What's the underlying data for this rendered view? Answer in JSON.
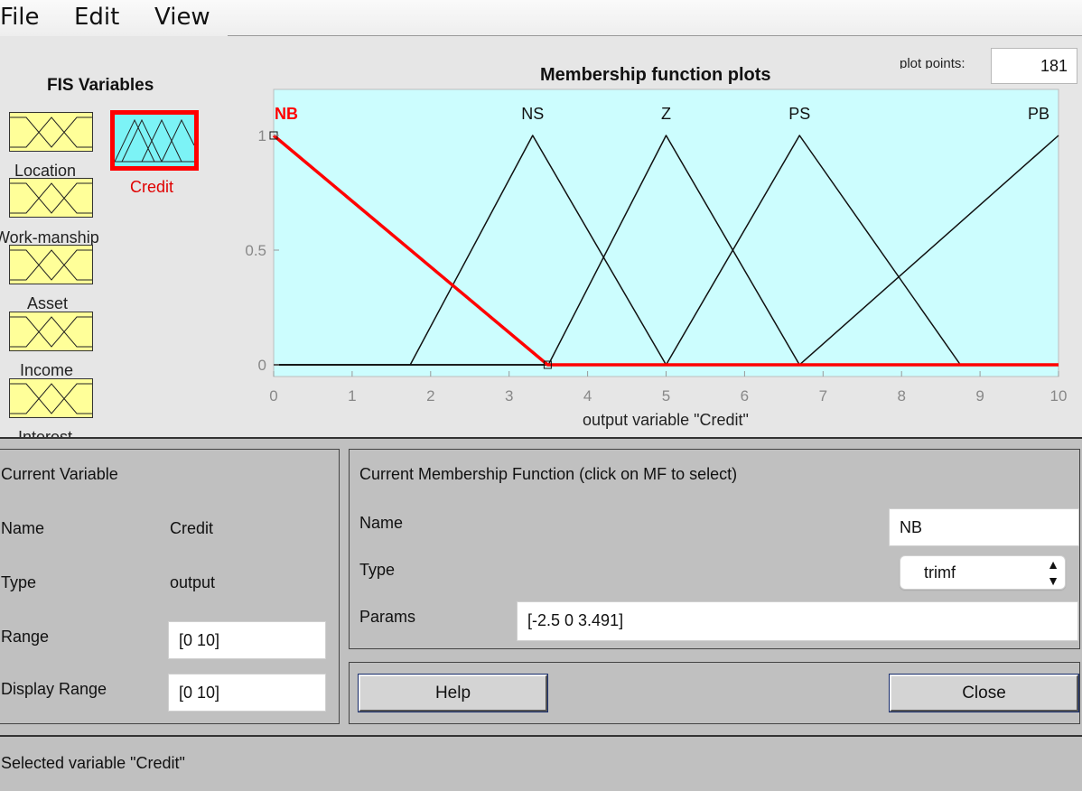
{
  "menu": {
    "file": "File",
    "edit": "Edit",
    "view": "View"
  },
  "fis_variables": {
    "title": "FIS Variables",
    "inputs": [
      "Location",
      "Work-manship",
      "Asset",
      "Income",
      "Interest"
    ],
    "output": "Credit",
    "selected": "Credit"
  },
  "plot": {
    "title": "Membership function plots",
    "plot_points_label": "plot points:",
    "plot_points_value": "181",
    "background": "#ccfdfe",
    "selected_color": "#ff0000"
  },
  "chart_data": {
    "type": "line",
    "title": "Membership function plots",
    "xlabel": "output variable \"Credit\"",
    "ylabel": "",
    "xlim": [
      0,
      10
    ],
    "ylim": [
      0,
      1
    ],
    "xticks": [
      "0",
      "1",
      "2",
      "3",
      "4",
      "5",
      "6",
      "7",
      "8",
      "9",
      "10"
    ],
    "yticks": [
      "0",
      "0.5",
      "1"
    ],
    "series": [
      {
        "name": "NB",
        "x": [
          0,
          3.491,
          10
        ],
        "y": [
          1,
          0,
          0
        ],
        "selected": true
      },
      {
        "name": "NS",
        "x": [
          0,
          1.74,
          3.3,
          5.0,
          10
        ],
        "y": [
          0,
          0,
          1,
          0,
          0
        ]
      },
      {
        "name": "Z",
        "x": [
          0,
          3.5,
          5.0,
          6.7,
          10
        ],
        "y": [
          0,
          0,
          1,
          0,
          0
        ]
      },
      {
        "name": "PS",
        "x": [
          0,
          5.0,
          6.7,
          8.75,
          10
        ],
        "y": [
          0,
          0,
          1,
          0,
          0
        ]
      },
      {
        "name": "PB",
        "x": [
          0,
          6.7,
          10
        ],
        "y": [
          0,
          0,
          1
        ]
      }
    ]
  },
  "current_variable": {
    "header": "Current Variable",
    "name_label": "Name",
    "name_value": "Credit",
    "type_label": "Type",
    "type_value": "output",
    "range_label": "Range",
    "range_value": "[0 10]",
    "display_range_label": "Display Range",
    "display_range_value": "[0 10]"
  },
  "current_mf": {
    "header": "Current Membership Function (click on MF to select)",
    "name_label": "Name",
    "name_value": "NB",
    "type_label": "Type",
    "type_value": "trimf",
    "params_label": "Params",
    "params_value": "[-2.5 0 3.491]"
  },
  "buttons": {
    "help": "Help",
    "close": "Close"
  },
  "status": "Selected variable \"Credit\""
}
